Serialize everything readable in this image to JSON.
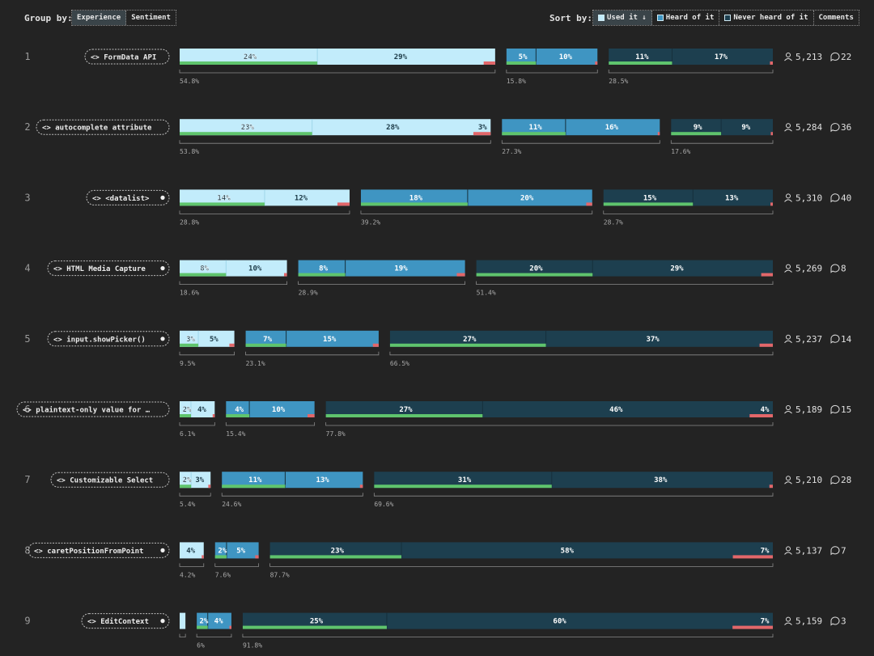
{
  "toolbar": {
    "group_label": "Group by:",
    "group_options": [
      "Experience",
      "Sentiment"
    ],
    "sort_label": "Sort by:",
    "sort_options": [
      "Used it ↓",
      "Heard of it",
      "Never heard of it",
      "Comments"
    ]
  },
  "colors": {
    "background": "#232323",
    "used": "#c2ecfb",
    "heard": "#3f95c2",
    "never": "#1d3f4f",
    "positive": "#5fc46d",
    "negative": "#e2676a"
  },
  "chart_data": {
    "type": "bar",
    "title": "",
    "columns": [
      "Used it",
      "Heard of it",
      "Never heard of it"
    ],
    "rows": [
      {
        "rank": "1",
        "name": "FormData API",
        "dot": false,
        "totals": [
          "54.8%",
          "15.8%",
          "28.5%"
        ],
        "groups": [
          {
            "share": 54.8,
            "pos": 24,
            "neg": 29,
            "bad": 2
          },
          {
            "share": 15.8,
            "pos": 5,
            "neg": 10,
            "bad": 0.4
          },
          {
            "share": 28.5,
            "pos": 11,
            "neg": 17,
            "bad": 0.5
          }
        ],
        "users": "5,213",
        "comments": "22"
      },
      {
        "rank": "2",
        "name": "autocomplete attribute",
        "dot": false,
        "totals": [
          "53.8%",
          "27.3%",
          "17.6%"
        ],
        "groups": [
          {
            "share": 53.8,
            "pos": 23,
            "neg": 28,
            "bad": 3
          },
          {
            "share": 27.3,
            "pos": 11,
            "neg": 16,
            "bad": 0.3
          },
          {
            "share": 17.6,
            "pos": 9,
            "neg": 9,
            "bad": 0.3
          }
        ],
        "users": "5,284",
        "comments": "36"
      },
      {
        "rank": "3",
        "name": "<datalist>",
        "dot": true,
        "totals": [
          "28.8%",
          "39.2%",
          "28.7%"
        ],
        "groups": [
          {
            "share": 28.8,
            "pos": 14,
            "neg": 12,
            "bad": 2
          },
          {
            "share": 39.2,
            "pos": 18,
            "neg": 20,
            "bad": 1
          },
          {
            "share": 28.7,
            "pos": 15,
            "neg": 13,
            "bad": 0.4
          }
        ],
        "users": "5,310",
        "comments": "40"
      },
      {
        "rank": "4",
        "name": "HTML Media Capture",
        "dot": true,
        "totals": [
          "18.6%",
          "28.9%",
          "51.4%"
        ],
        "groups": [
          {
            "share": 18.6,
            "pos": 8,
            "neg": 10,
            "bad": 0.5
          },
          {
            "share": 28.9,
            "pos": 8,
            "neg": 19,
            "bad": 1.4
          },
          {
            "share": 51.4,
            "pos": 20,
            "neg": 29,
            "bad": 2
          }
        ],
        "users": "5,269",
        "comments": "8"
      },
      {
        "rank": "5",
        "name": "input.showPicker()",
        "dot": true,
        "totals": [
          "9.5%",
          "23.1%",
          "66.5%"
        ],
        "groups": [
          {
            "share": 9.5,
            "pos": 3,
            "neg": 5,
            "bad": 0.8
          },
          {
            "share": 23.1,
            "pos": 7,
            "neg": 15,
            "bad": 1
          },
          {
            "share": 66.5,
            "pos": 27,
            "neg": 37,
            "bad": 2.3
          }
        ],
        "users": "5,237",
        "comments": "14"
      },
      {
        "rank": "6",
        "name": "plaintext-only value for …",
        "dot": false,
        "totals": [
          "6.1%",
          "15.4%",
          "77.8%"
        ],
        "groups": [
          {
            "share": 6.1,
            "pos": 2,
            "neg": 4,
            "bad": 0.2
          },
          {
            "share": 15.4,
            "pos": 4,
            "neg": 10,
            "bad": 1.2
          },
          {
            "share": 77.8,
            "pos": 27,
            "neg": 46,
            "bad": 4
          }
        ],
        "users": "5,189",
        "comments": "15"
      },
      {
        "rank": "7",
        "name": "Customizable Select",
        "dot": false,
        "totals": [
          "5.4%",
          "24.6%",
          "69.6%"
        ],
        "groups": [
          {
            "share": 5.4,
            "pos": 2,
            "neg": 3,
            "bad": 0.4
          },
          {
            "share": 24.6,
            "pos": 11,
            "neg": 13,
            "bad": 0.5
          },
          {
            "share": 69.6,
            "pos": 31,
            "neg": 38,
            "bad": 0.6
          }
        ],
        "users": "5,210",
        "comments": "28"
      },
      {
        "rank": "8",
        "name": "caretPositionFromPoint",
        "dot": true,
        "totals": [
          "4.2%",
          "7.6%",
          "87.7%"
        ],
        "groups": [
          {
            "share": 4.2,
            "pos": 0,
            "neg": 4,
            "bad": 0.2
          },
          {
            "share": 7.6,
            "pos": 2,
            "neg": 5,
            "bad": 0.6
          },
          {
            "share": 87.7,
            "pos": 23,
            "neg": 58,
            "bad": 7
          }
        ],
        "users": "5,137",
        "comments": "7"
      },
      {
        "rank": "9",
        "name": "EditContext",
        "dot": true,
        "totals": [
          "",
          "6%",
          "91.8%"
        ],
        "groups": [
          {
            "share": 1.0,
            "pos": 0,
            "neg": 1,
            "bad": 0
          },
          {
            "share": 6.0,
            "pos": 2,
            "neg": 4,
            "bad": 0.3
          },
          {
            "share": 91.8,
            "pos": 25,
            "neg": 60,
            "bad": 7
          }
        ],
        "users": "5,159",
        "comments": "3"
      }
    ]
  }
}
